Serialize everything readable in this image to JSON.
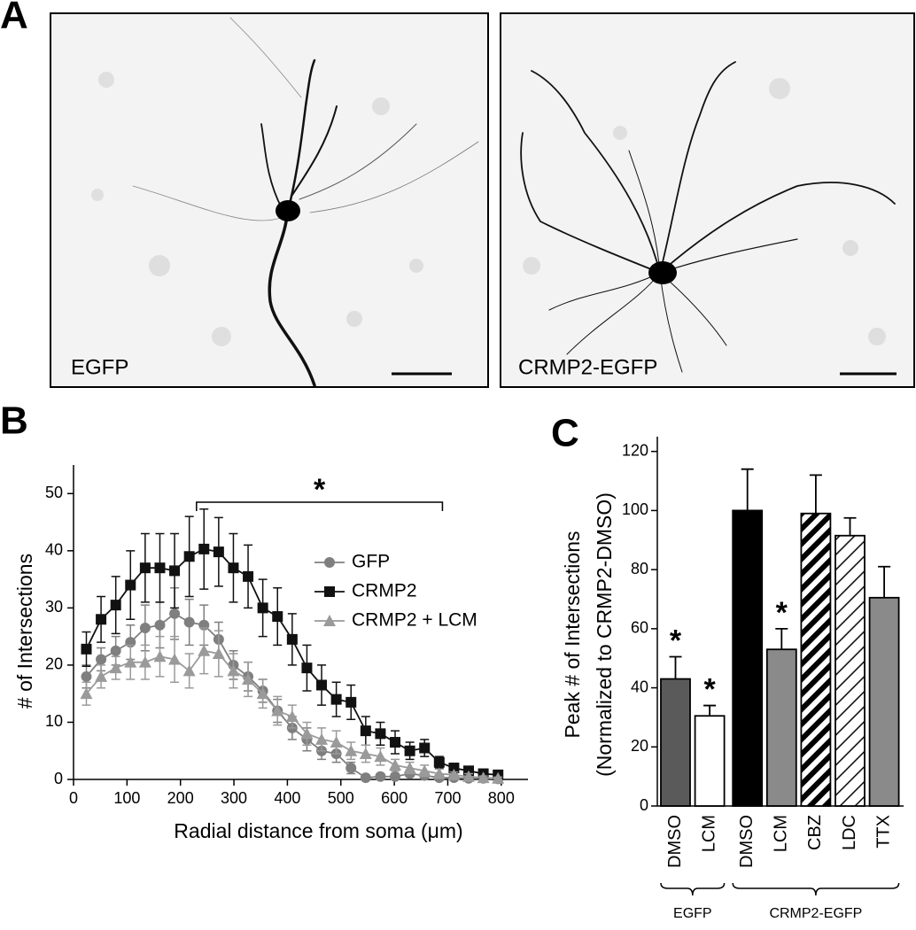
{
  "panel_a": {
    "label": "A",
    "images": [
      {
        "caption": "EGFP"
      },
      {
        "caption": "CRMP2-EGFP"
      }
    ]
  },
  "chart_data": [
    {
      "type": "line",
      "panel_label": "B",
      "x_label": "Radial distance from soma (μm)",
      "y_label": "# of Intersections",
      "x": [
        24,
        51.5,
        79,
        106.5,
        134,
        161.5,
        189,
        216.5,
        244,
        271.5,
        299,
        326.5,
        354,
        381.5,
        409,
        436.5,
        464,
        491.5,
        519,
        546.5,
        574,
        601.5,
        629,
        656.5,
        684,
        711.5,
        739,
        766.5,
        794
      ],
      "series": [
        {
          "name": "GFP",
          "color": "#7f7f7f",
          "marker": "circle",
          "values": [
            18,
            21,
            22.5,
            24,
            26.5,
            27,
            29,
            27.5,
            27,
            24.5,
            20,
            18,
            15.5,
            12,
            9,
            7,
            5,
            4.5,
            2,
            0.3,
            0.5,
            0.5,
            1,
            0.7,
            0.3,
            0.3,
            0.2,
            0.2,
            0.1
          ],
          "errors": [
            2,
            2,
            2.5,
            3,
            4,
            4,
            4.5,
            4,
            3.5,
            3,
            2.5,
            2.5,
            2,
            2,
            2,
            2,
            1.5,
            1.5,
            1,
            0.3,
            0.5,
            0.5,
            0.5,
            0.5,
            0.3,
            0.3,
            0.2,
            0.2,
            0.1
          ]
        },
        {
          "name": "CRMP2",
          "color": "#111111",
          "marker": "square",
          "values": [
            22.8,
            28,
            30.5,
            34,
            37,
            37,
            36.5,
            39,
            40.3,
            39.8,
            37,
            35.5,
            30,
            28.5,
            24.5,
            19.5,
            16.5,
            14,
            13.5,
            8.5,
            8,
            6.5,
            5,
            5.5,
            3,
            2,
            1.5,
            1,
            0.8
          ],
          "errors": [
            3,
            4,
            5,
            6,
            6,
            6,
            6.5,
            7,
            7,
            6,
            6,
            5.5,
            5,
            5,
            4.5,
            4,
            3.5,
            3,
            3,
            2.5,
            2,
            2,
            1.5,
            1.5,
            1,
            0.8,
            0.6,
            0.5,
            0.4
          ]
        },
        {
          "name": "CRMP2 + LCM",
          "color": "#9a9a9a",
          "marker": "triangle",
          "values": [
            15,
            18,
            19.5,
            20.5,
            20.5,
            21.5,
            21,
            19,
            22.5,
            22,
            19,
            17.5,
            15,
            12,
            11,
            8,
            7,
            6.5,
            5,
            4.5,
            4,
            2.5,
            2,
            1.5,
            1,
            0.8,
            0.5,
            0.3,
            0.2
          ],
          "errors": [
            2,
            2,
            2,
            3,
            3,
            3.5,
            4,
            3,
            4,
            4,
            3,
            3,
            2.5,
            2.5,
            2,
            2,
            2,
            2,
            1.5,
            1.5,
            1.5,
            1,
            1,
            1,
            0.8,
            0.5,
            0.5,
            0.3,
            0.2
          ]
        }
      ],
      "xlim": [
        0,
        850
      ],
      "xticks": [
        0,
        100,
        200,
        300,
        400,
        500,
        600,
        700,
        800
      ],
      "ylim": [
        0,
        55
      ],
      "yticks": [
        0,
        10,
        20,
        30,
        40,
        50
      ],
      "legend": "center-right",
      "bracket": {
        "label": "*",
        "x": [
          230,
          690
        ]
      }
    },
    {
      "type": "bar",
      "panel_label": "C",
      "y_label": [
        "Peak # of Intersections",
        "(Normalized to CRMP2-DMSO)"
      ],
      "categories": [
        "DMSO",
        "LCM",
        "DMSO",
        "LCM",
        "CBZ",
        "LDC",
        "TTX"
      ],
      "values": [
        43,
        30.5,
        100,
        53,
        99,
        91.5,
        70.5
      ],
      "errors": [
        7.5,
        3.5,
        14,
        7,
        13,
        6,
        10.5
      ],
      "colors": [
        "#5a5a5a",
        "#ffffff",
        "#000000",
        "#8a8a8a",
        "#000000",
        "#000000",
        "#8a8a8a"
      ],
      "hatch": [
        "none",
        "none",
        "none",
        "none",
        "bold",
        "thin",
        "none"
      ],
      "significant": [
        true,
        true,
        false,
        true,
        false,
        false,
        false
      ],
      "significance_label": "*",
      "groups": [
        {
          "label": "EGFP",
          "first": 0,
          "last": 1
        },
        {
          "label": "CRMP2-EGFP",
          "first": 2,
          "last": 6
        }
      ],
      "ylim": [
        0,
        125
      ],
      "yticks": [
        0,
        20,
        40,
        60,
        80,
        100,
        120
      ]
    }
  ]
}
